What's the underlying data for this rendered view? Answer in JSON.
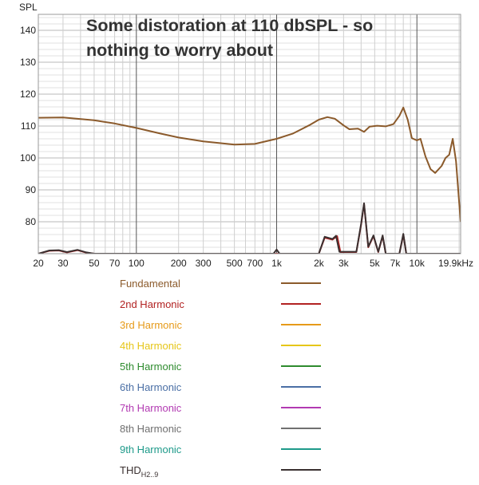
{
  "chart_data": {
    "type": "line",
    "title": "Some distoration at 110 dbSPL - so nothing to worry about",
    "title_lines": [
      "Some distoration at 110 dbSPL - so",
      "nothing to worry about"
    ],
    "ylabel": "SPL",
    "xlabel": "",
    "xscale": "log",
    "xlim": [
      20,
      20500
    ],
    "ylim": [
      70,
      145
    ],
    "y_ticks": [
      80,
      90,
      100,
      110,
      120,
      130,
      140
    ],
    "x_ticks": [
      {
        "value": 20,
        "label": "20"
      },
      {
        "value": 30,
        "label": "30"
      },
      {
        "value": 50,
        "label": "50"
      },
      {
        "value": 70,
        "label": "70"
      },
      {
        "value": 100,
        "label": "100"
      },
      {
        "value": 200,
        "label": "200"
      },
      {
        "value": 300,
        "label": "300"
      },
      {
        "value": 500,
        "label": "500"
      },
      {
        "value": 700,
        "label": "700"
      },
      {
        "value": 1000,
        "label": "1k"
      },
      {
        "value": 2000,
        "label": "2k"
      },
      {
        "value": 3000,
        "label": "3k"
      },
      {
        "value": 5000,
        "label": "5k"
      },
      {
        "value": 7000,
        "label": "7k"
      },
      {
        "value": 10000,
        "label": "10k"
      },
      {
        "value": 19900,
        "label": "19.9kHz"
      }
    ],
    "grid": true,
    "legend_position": "below",
    "series": [
      {
        "name": "Fundamental",
        "color": "#8B5A2B",
        "points": [
          [
            20,
            112.6
          ],
          [
            30,
            112.7
          ],
          [
            50,
            111.8
          ],
          [
            70,
            110.8
          ],
          [
            100,
            109.4
          ],
          [
            150,
            107.6
          ],
          [
            200,
            106.4
          ],
          [
            300,
            105.2
          ],
          [
            500,
            104.2
          ],
          [
            700,
            104.4
          ],
          [
            1000,
            106
          ],
          [
            1300,
            107.6
          ],
          [
            1700,
            110.2
          ],
          [
            2000,
            112
          ],
          [
            2300,
            112.8
          ],
          [
            2600,
            112.3
          ],
          [
            3000,
            110.2
          ],
          [
            3300,
            109
          ],
          [
            3800,
            109.2
          ],
          [
            4200,
            108.2
          ],
          [
            4600,
            109.8
          ],
          [
            5200,
            110.1
          ],
          [
            6000,
            109.9
          ],
          [
            6800,
            110.6
          ],
          [
            7500,
            113.2
          ],
          [
            8000,
            115.8
          ],
          [
            8600,
            112
          ],
          [
            9200,
            106.2
          ],
          [
            10000,
            105.5
          ],
          [
            10600,
            106
          ],
          [
            11500,
            100.5
          ],
          [
            12500,
            96.5
          ],
          [
            13500,
            95.3
          ],
          [
            15000,
            97.5
          ],
          [
            16000,
            100
          ],
          [
            17000,
            101
          ],
          [
            18000,
            106
          ],
          [
            19000,
            99
          ],
          [
            20500,
            80
          ]
        ]
      },
      {
        "name": "2nd Harmonic",
        "color": "#B22222",
        "points": [
          [
            20,
            70
          ],
          [
            24,
            70.9
          ],
          [
            28,
            71
          ],
          [
            32,
            70.4
          ],
          [
            38,
            71.1
          ],
          [
            44,
            70.3
          ],
          [
            50,
            70
          ],
          [
            1000,
            70
          ],
          [
            1200,
            70
          ],
          [
            2000,
            70
          ],
          [
            2200,
            75
          ],
          [
            2500,
            74.4
          ],
          [
            2700,
            75.5
          ],
          [
            2850,
            70.5
          ],
          [
            3700,
            70.5
          ],
          [
            4000,
            79
          ],
          [
            4200,
            85.6
          ],
          [
            4500,
            72
          ],
          [
            4900,
            75.5
          ],
          [
            5300,
            70.5
          ],
          [
            5700,
            75.5
          ],
          [
            6000,
            70
          ],
          [
            7500,
            70
          ],
          [
            8000,
            76
          ],
          [
            8400,
            70
          ],
          [
            20500,
            70
          ]
        ]
      },
      {
        "name": "3rd Harmonic",
        "color": "#E69A19",
        "points": []
      },
      {
        "name": "4th Harmonic",
        "color": "#E6C619",
        "points": []
      },
      {
        "name": "5th Harmonic",
        "color": "#2E8B2E",
        "points": []
      },
      {
        "name": "6th Harmonic",
        "color": "#4A6FA5",
        "points": []
      },
      {
        "name": "7th Harmonic",
        "color": "#B23AB2",
        "points": []
      },
      {
        "name": "8th Harmonic",
        "color": "#707070",
        "points": []
      },
      {
        "name": "9th Harmonic",
        "color": "#1E9A8A",
        "points": []
      },
      {
        "name": "THD",
        "name_sub": "H2..9",
        "color": "#3A3030",
        "points": [
          [
            20,
            70
          ],
          [
            24,
            71
          ],
          [
            28,
            71.1
          ],
          [
            32,
            70.5
          ],
          [
            38,
            71.2
          ],
          [
            44,
            70.4
          ],
          [
            50,
            70
          ],
          [
            950,
            70
          ],
          [
            1000,
            71.3
          ],
          [
            1050,
            70
          ],
          [
            1300,
            70
          ],
          [
            2000,
            70
          ],
          [
            2200,
            75.3
          ],
          [
            2500,
            74.6
          ],
          [
            2650,
            75.6
          ],
          [
            2800,
            70.6
          ],
          [
            3700,
            70.6
          ],
          [
            4000,
            79.3
          ],
          [
            4200,
            85.8
          ],
          [
            4500,
            72.2
          ],
          [
            4900,
            75.7
          ],
          [
            5300,
            70.6
          ],
          [
            5700,
            75.7
          ],
          [
            6000,
            70
          ],
          [
            7500,
            70
          ],
          [
            8000,
            76.2
          ],
          [
            8400,
            70
          ],
          [
            20500,
            70
          ]
        ]
      }
    ]
  },
  "legend": [
    {
      "label": "Fundamental",
      "color": "#8B5A2B"
    },
    {
      "label": "2nd Harmonic",
      "color": "#B22222"
    },
    {
      "label": "3rd Harmonic",
      "color": "#E69A19"
    },
    {
      "label": "4th Harmonic",
      "color": "#E6C619"
    },
    {
      "label": "5th Harmonic",
      "color": "#2E8B2E"
    },
    {
      "label": "6th Harmonic",
      "color": "#4A6FA5"
    },
    {
      "label": "7th Harmonic",
      "color": "#B23AB2"
    },
    {
      "label": "8th Harmonic",
      "color": "#707070"
    },
    {
      "label": "9th Harmonic",
      "color": "#1E9A8A"
    },
    {
      "label": "THD",
      "sub": "H2..9",
      "color": "#3A3030"
    }
  ]
}
